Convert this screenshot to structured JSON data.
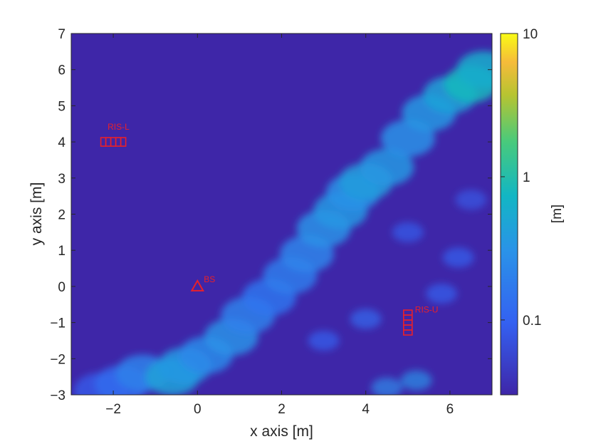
{
  "chart_data": {
    "type": "heatmap",
    "title": "",
    "xlabel": "x axis [m]",
    "ylabel": "y axis [m]",
    "xlim": [
      -3,
      7
    ],
    "ylim": [
      -3,
      7
    ],
    "x_ticks": [
      "-2",
      "0",
      "2",
      "4",
      "6"
    ],
    "y_ticks": [
      "-3",
      "-2",
      "-1",
      "0",
      "1",
      "2",
      "3",
      "4",
      "5",
      "6",
      "7"
    ],
    "colorbar": {
      "label": "[m]",
      "scale": "log",
      "range": [
        0.03,
        10
      ],
      "ticks": [
        "0.1",
        "1",
        "10"
      ],
      "colormap": "parula"
    },
    "description_values": {
      "background_level": 0.03,
      "band_values": [
        {
          "x": -2.3,
          "y": -2.9,
          "v": 0.08
        },
        {
          "x": -1.8,
          "y": -2.7,
          "v": 0.12
        },
        {
          "x": -1.3,
          "y": -2.4,
          "v": 0.2
        },
        {
          "x": -0.6,
          "y": -2.5,
          "v": 0.45
        },
        {
          "x": -0.3,
          "y": -2.2,
          "v": 0.35
        },
        {
          "x": 0.2,
          "y": -1.9,
          "v": 0.25
        },
        {
          "x": 0.8,
          "y": -1.4,
          "v": 0.3
        },
        {
          "x": 1.2,
          "y": -0.8,
          "v": 0.2
        },
        {
          "x": 1.7,
          "y": -0.3,
          "v": 0.15
        },
        {
          "x": 2.2,
          "y": 0.3,
          "v": 0.18
        },
        {
          "x": 2.6,
          "y": 0.9,
          "v": 0.22
        },
        {
          "x": 3.0,
          "y": 1.6,
          "v": 0.3
        },
        {
          "x": 3.4,
          "y": 2.1,
          "v": 0.35
        },
        {
          "x": 3.7,
          "y": 2.6,
          "v": 0.3
        },
        {
          "x": 4.0,
          "y": 2.9,
          "v": 0.4
        },
        {
          "x": 4.5,
          "y": 3.3,
          "v": 0.35
        },
        {
          "x": 5.0,
          "y": 4.1,
          "v": 0.3
        },
        {
          "x": 5.5,
          "y": 4.8,
          "v": 0.35
        },
        {
          "x": 6.0,
          "y": 5.3,
          "v": 0.45
        },
        {
          "x": 6.5,
          "y": 5.6,
          "v": 0.8
        },
        {
          "x": 6.8,
          "y": 6.0,
          "v": 0.6
        }
      ],
      "scatter_values": [
        {
          "x": 4.5,
          "y": -2.8,
          "v": 0.25
        },
        {
          "x": 5.2,
          "y": -2.6,
          "v": 0.3
        },
        {
          "x": 3.0,
          "y": -1.5,
          "v": 0.1
        },
        {
          "x": 4.0,
          "y": -0.9,
          "v": 0.12
        },
        {
          "x": 5.8,
          "y": -0.2,
          "v": 0.1
        },
        {
          "x": 6.2,
          "y": 0.8,
          "v": 0.1
        },
        {
          "x": 5.0,
          "y": 1.5,
          "v": 0.09
        },
        {
          "x": 6.5,
          "y": 2.4,
          "v": 0.08
        }
      ]
    },
    "markers": [
      {
        "label": "RIS-L",
        "shape": "square-array",
        "orientation": "horizontal",
        "x": -2.0,
        "y": 4.0,
        "count": 5
      },
      {
        "label": "BS",
        "shape": "triangle",
        "x": 0.0,
        "y": 0.0
      },
      {
        "label": "RIS-U",
        "shape": "square-array",
        "orientation": "vertical",
        "x": 5.0,
        "y": -1.0,
        "count": 5
      }
    ],
    "marker_color": "#e8202a",
    "background_color": "#3e26a8"
  }
}
